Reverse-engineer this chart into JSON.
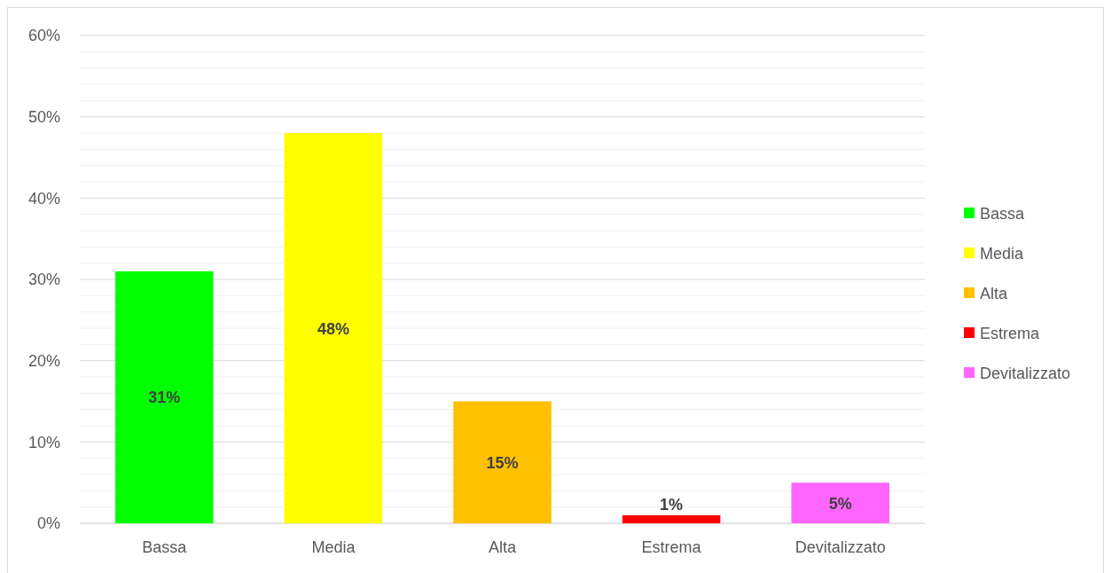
{
  "chart_data": {
    "type": "bar",
    "categories": [
      "Bassa",
      "Media",
      "Alta",
      "Estrema",
      "Devitalizzato"
    ],
    "stacked": true,
    "series": [
      {
        "name": "Bassa",
        "color": "#00ff00",
        "values": [
          31,
          null,
          null,
          null,
          null
        ],
        "value_labels": [
          "31%",
          null,
          null,
          null,
          null
        ]
      },
      {
        "name": "Media",
        "color": "#ffff00",
        "values": [
          null,
          48,
          null,
          null,
          null
        ],
        "value_labels": [
          null,
          "48%",
          null,
          null,
          null
        ]
      },
      {
        "name": "Alta",
        "color": "#ffc000",
        "values": [
          null,
          null,
          15,
          null,
          null
        ],
        "value_labels": [
          null,
          null,
          "15%",
          null,
          null
        ]
      },
      {
        "name": "Estrema",
        "color": "#ff0000",
        "values": [
          null,
          null,
          null,
          1,
          null
        ],
        "value_labels": [
          null,
          null,
          null,
          "1%",
          null
        ]
      },
      {
        "name": "Devitalizzato",
        "color": "#ff66ff",
        "values": [
          null,
          null,
          null,
          null,
          5
        ],
        "value_labels": [
          null,
          null,
          null,
          null,
          "5%"
        ]
      }
    ],
    "ylim": [
      0,
      60
    ],
    "yticks": [
      {
        "value": 0,
        "label": "0%"
      },
      {
        "value": 2,
        "label": null
      },
      {
        "value": 4,
        "label": null
      },
      {
        "value": 6,
        "label": null
      },
      {
        "value": 8,
        "label": null
      },
      {
        "value": 10,
        "label": "10%"
      },
      {
        "value": 12,
        "label": null
      },
      {
        "value": 14,
        "label": null
      },
      {
        "value": 16,
        "label": null
      },
      {
        "value": 18,
        "label": null
      },
      {
        "value": 20,
        "label": "20%"
      },
      {
        "value": 22,
        "label": null
      },
      {
        "value": 24,
        "label": null
      },
      {
        "value": 26,
        "label": null
      },
      {
        "value": 28,
        "label": null
      },
      {
        "value": 30,
        "label": "30%"
      },
      {
        "value": 32,
        "label": null
      },
      {
        "value": 34,
        "label": null
      },
      {
        "value": 36,
        "label": null
      },
      {
        "value": 38,
        "label": null
      },
      {
        "value": 40,
        "label": "40%"
      },
      {
        "value": 42,
        "label": null
      },
      {
        "value": 44,
        "label": null
      },
      {
        "value": 46,
        "label": null
      },
      {
        "value": 48,
        "label": null
      },
      {
        "value": 50,
        "label": "50%"
      },
      {
        "value": 52,
        "label": null
      },
      {
        "value": 54,
        "label": null
      },
      {
        "value": 56,
        "label": null
      },
      {
        "value": 58,
        "label": null
      },
      {
        "value": 60,
        "label": "60%"
      }
    ],
    "grid": "y",
    "legend": "right"
  }
}
